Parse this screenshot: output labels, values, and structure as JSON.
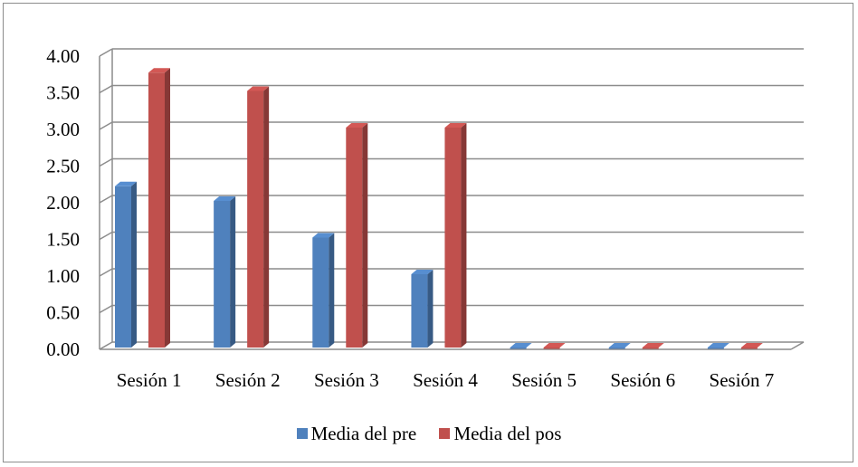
{
  "chart_data": {
    "type": "bar",
    "categories": [
      "Sesión 1",
      "Sesión 2",
      "Sesión 3",
      "Sesión 4",
      "Sesión 5",
      "Sesión 6",
      "Sesión 7"
    ],
    "series": [
      {
        "name": "Media del pre",
        "values": [
          2.2,
          2.0,
          1.5,
          1.0,
          0,
          0,
          0
        ],
        "color": "#4f81bd"
      },
      {
        "name": "Media del pos",
        "values": [
          3.75,
          3.5,
          3.0,
          3.0,
          0,
          0,
          0
        ],
        "color": "#c0504d"
      }
    ],
    "y_ticks": [
      "0.00",
      "0.50",
      "1.00",
      "1.50",
      "2.00",
      "2.50",
      "3.00",
      "3.50",
      "4.00"
    ],
    "ylim": [
      0,
      4
    ],
    "title": "",
    "xlabel": "",
    "ylabel": "",
    "grid": true,
    "legend_position": "bottom",
    "style": "3d-clustered-column"
  }
}
